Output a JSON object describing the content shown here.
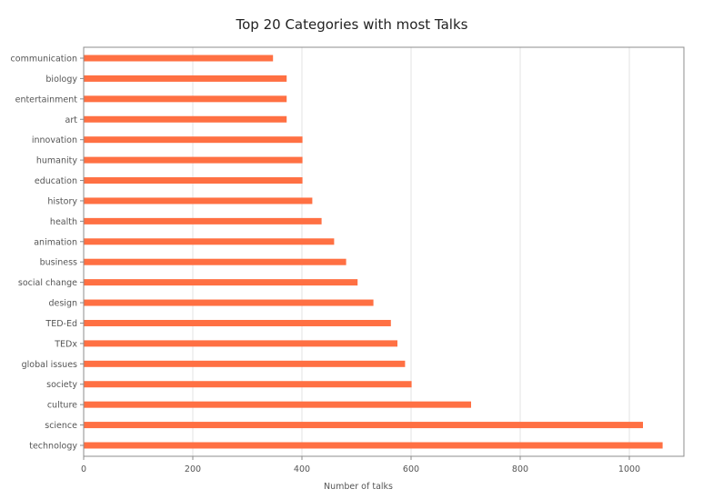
{
  "chart_data": {
    "type": "bar",
    "orientation": "horizontal",
    "title": "Top 20 Categories with most Talks",
    "xlabel": "Number of talks",
    "ylabel": "",
    "xlim": [
      0,
      1100
    ],
    "x_ticks": [
      0,
      200,
      400,
      600,
      800,
      1000
    ],
    "grid": "vertical",
    "legend": "none",
    "bar_color": "#ff7043",
    "categories": [
      "communication",
      "biology",
      "entertainment",
      "art",
      "innovation",
      "humanity",
      "education",
      "history",
      "health",
      "animation",
      "business",
      "social change",
      "design",
      "TED-Ed",
      "TEDx",
      "global issues",
      "society",
      "culture",
      "science",
      "technology"
    ],
    "values": [
      347,
      372,
      372,
      372,
      401,
      401,
      401,
      419,
      436,
      459,
      481,
      502,
      531,
      563,
      575,
      589,
      601,
      710,
      1025,
      1061
    ]
  }
}
